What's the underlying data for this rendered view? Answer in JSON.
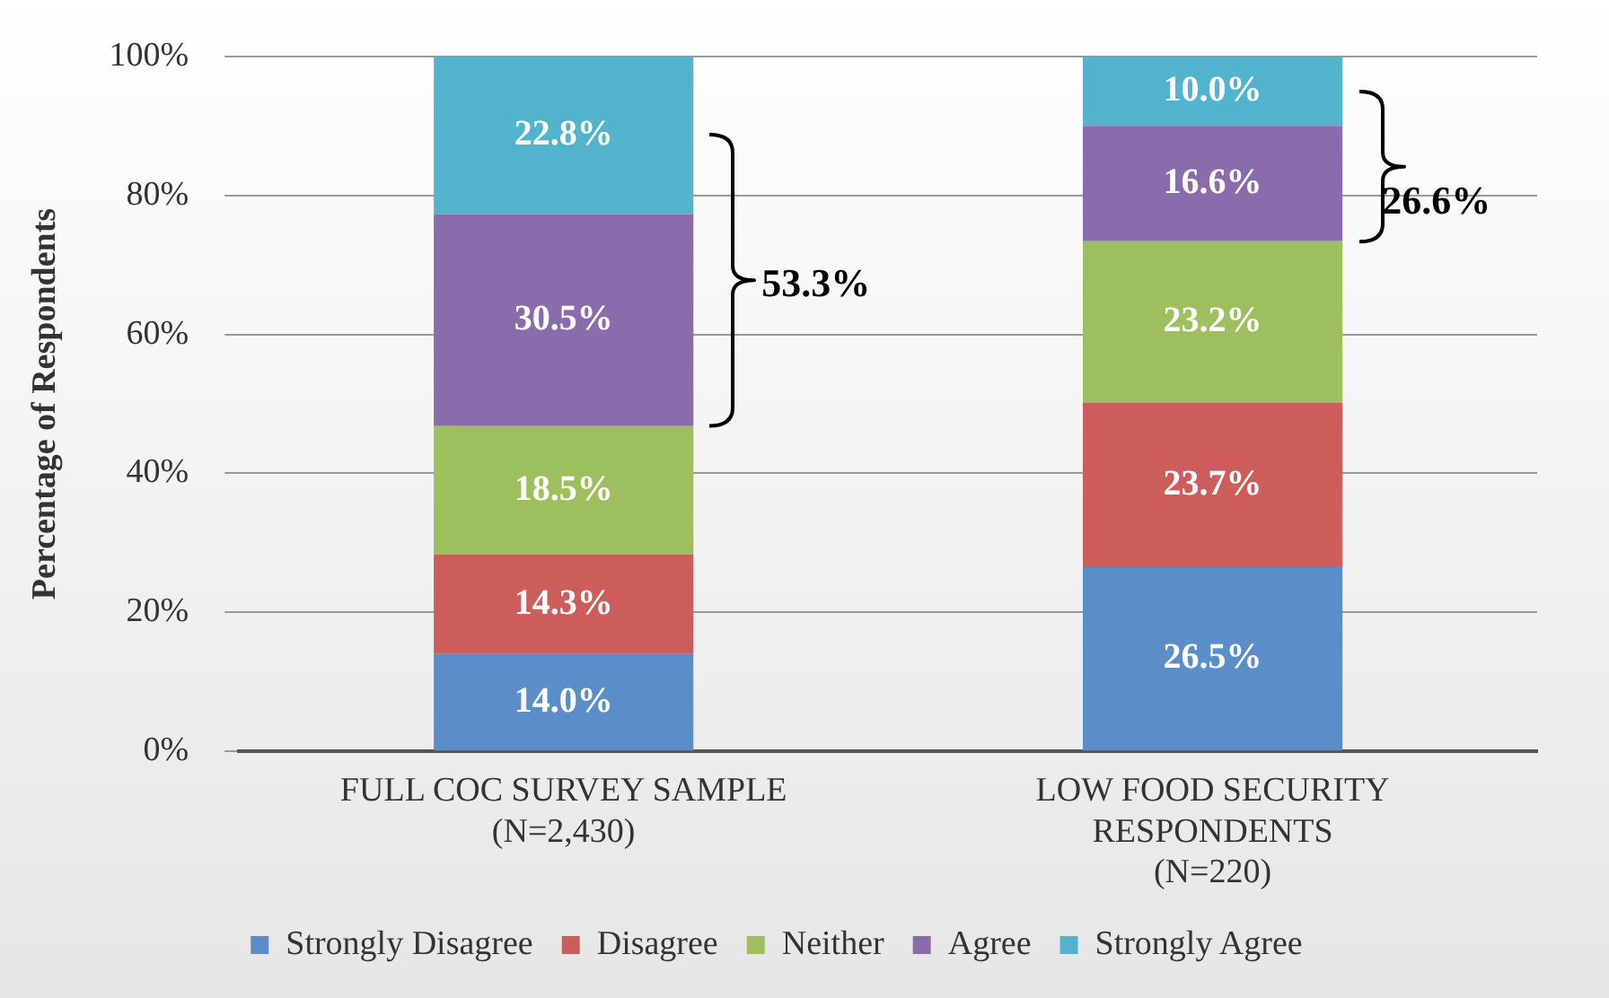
{
  "chart_data": {
    "type": "bar",
    "stacked": true,
    "ylabel": "Percentage of Respondents",
    "categories": [
      "FULL COC SURVEY SAMPLE\n(N=2,430)",
      "LOW FOOD SECURITY\nRESPONDENTS\n(N=220)"
    ],
    "series": [
      {
        "name": "Strongly Disagree",
        "color": "#5b8ec8",
        "values": [
          14.0,
          26.5
        ],
        "value_labels": [
          "14.0%",
          "26.5%"
        ]
      },
      {
        "name": "Disagree",
        "color": "#cd5d5b",
        "values": [
          14.3,
          23.7
        ],
        "value_labels": [
          "14.3%",
          "23.7%"
        ]
      },
      {
        "name": "Neither",
        "color": "#9dbf5e",
        "values": [
          18.5,
          23.2
        ],
        "value_labels": [
          "18.5%",
          "23.2%"
        ]
      },
      {
        "name": "Agree",
        "color": "#8a6bac",
        "values": [
          30.5,
          16.6
        ],
        "value_labels": [
          "30.5%",
          "16.6%"
        ]
      },
      {
        "name": "Strongly Agree",
        "color": "#52b4cc",
        "values": [
          22.8,
          10.0
        ],
        "value_labels": [
          "22.8%",
          "10.0%"
        ]
      }
    ],
    "ylim": [
      0,
      100
    ],
    "yticks": [
      {
        "value": 0,
        "label": "0%"
      },
      {
        "value": 20,
        "label": "20%"
      },
      {
        "value": 40,
        "label": "40%"
      },
      {
        "value": 60,
        "label": "60%"
      },
      {
        "value": 80,
        "label": "80%"
      },
      {
        "value": 100,
        "label": "100%"
      }
    ],
    "grid": "y",
    "legend": "bottom",
    "annotations": [
      "53.3%",
      "26.6%"
    ]
  }
}
